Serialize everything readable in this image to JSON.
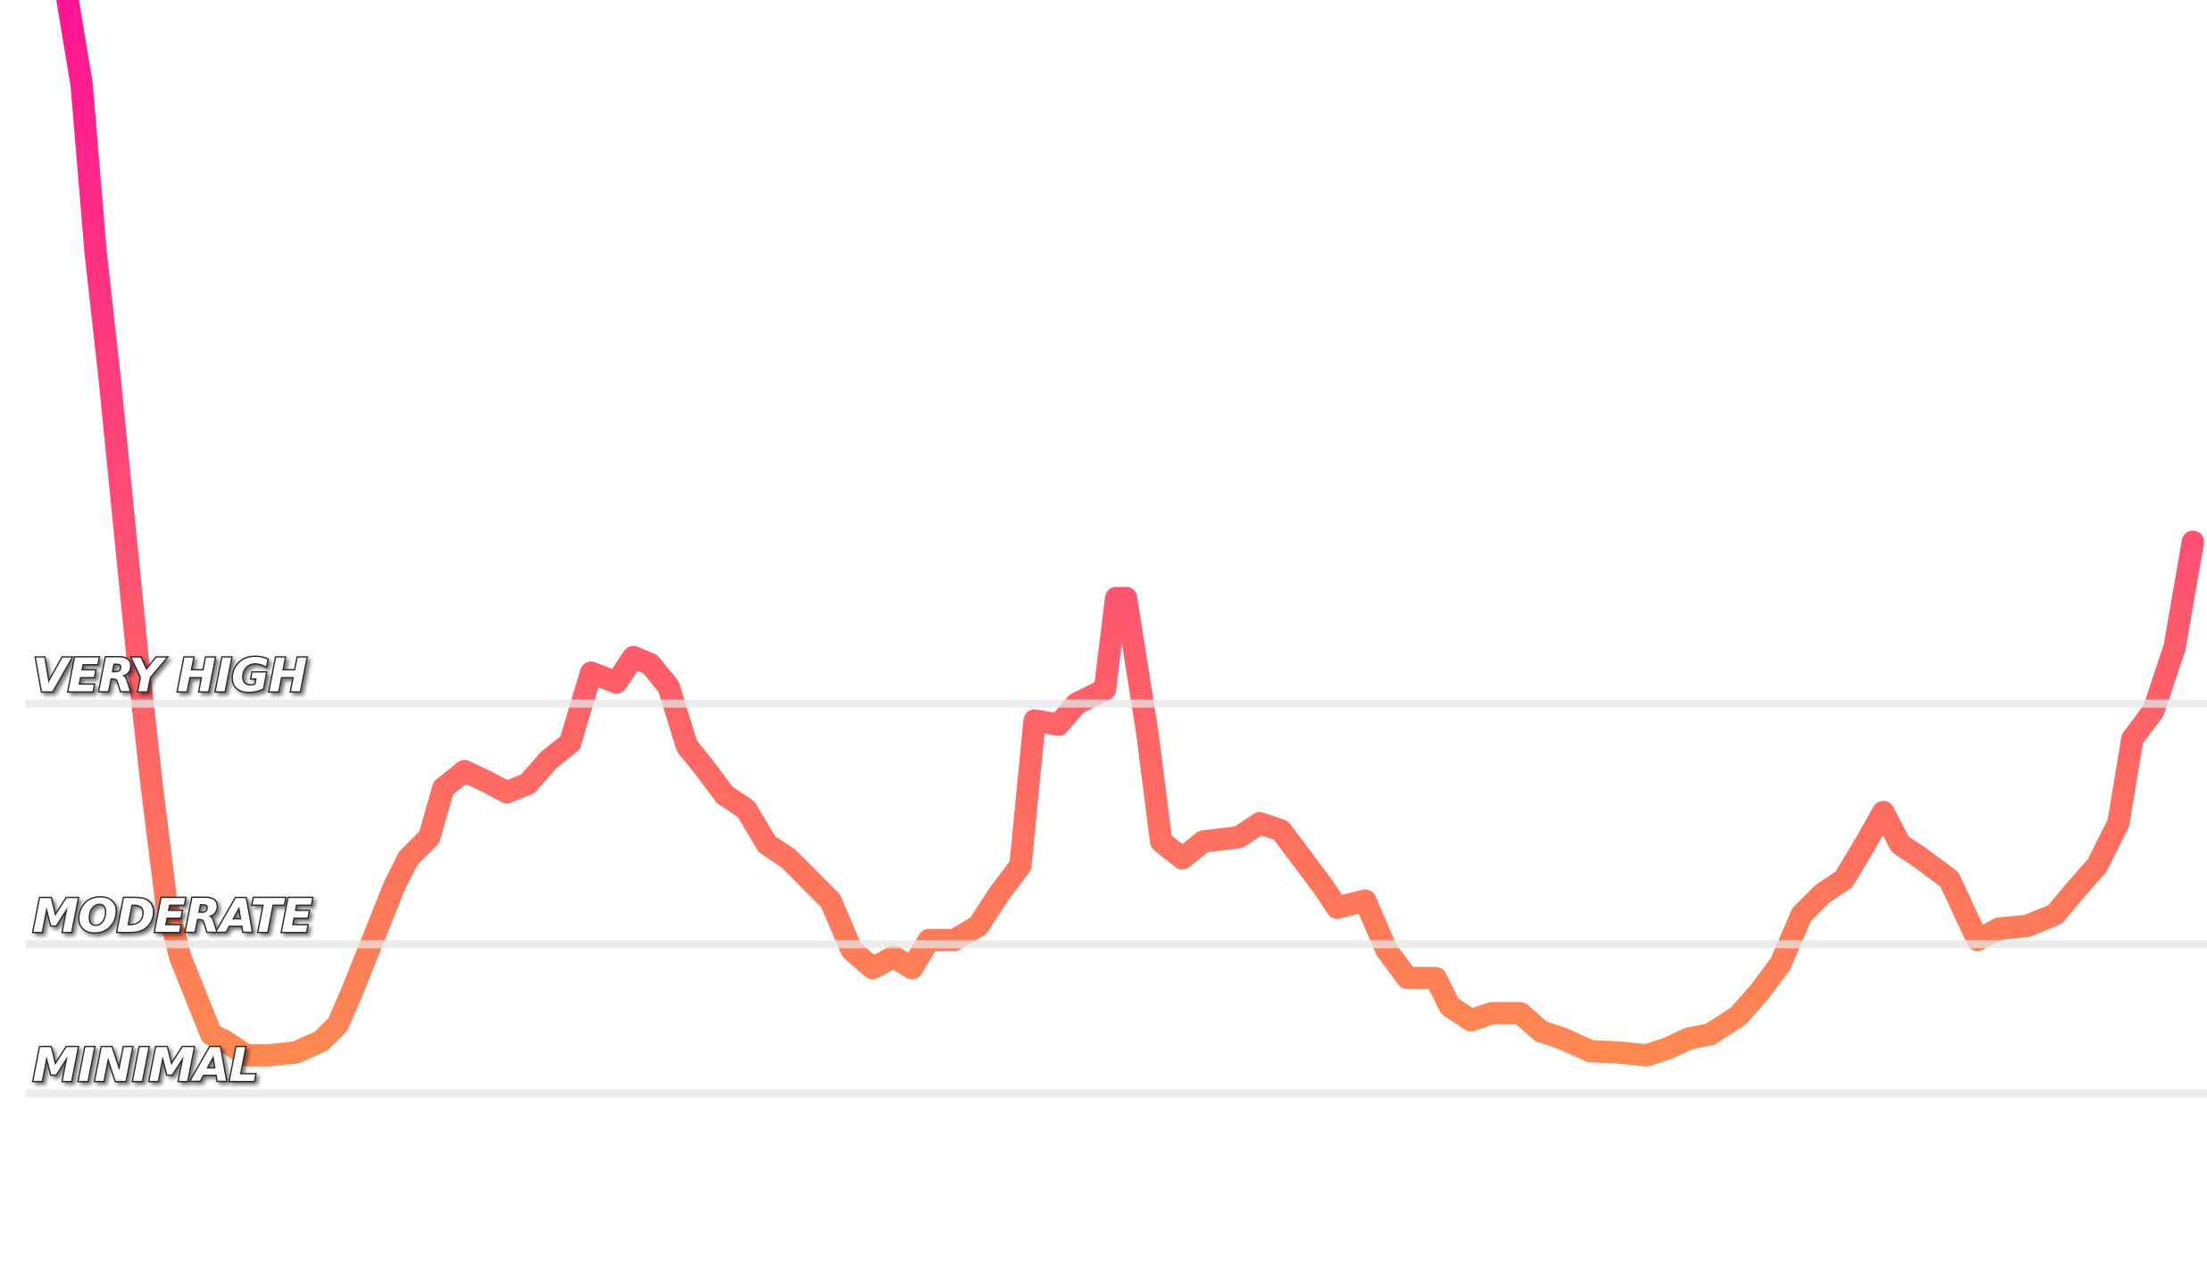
{
  "chart_data": {
    "type": "line",
    "xlim": [
      0,
      1550
    ],
    "ylim": [
      0,
      897
    ],
    "gradient": [
      "#ff1493",
      "#ff8a50"
    ],
    "reference_color": "#e6e6e6",
    "reference_lines": [
      {
        "label": "VERY HIGH",
        "value": 397
      },
      {
        "label": "MODERATE",
        "value": 226
      },
      {
        "label": "MINIMAL",
        "value": 120
      }
    ],
    "x": [
      30,
      40,
      50,
      60,
      70,
      80,
      90,
      100,
      110,
      122,
      132,
      142,
      157,
      172,
      192,
      210,
      222,
      232,
      242,
      252,
      262,
      272,
      287,
      297,
      312,
      327,
      342,
      357,
      372,
      387,
      402,
      420,
      432,
      444,
      457,
      470,
      482,
      497,
      512,
      527,
      542,
      557,
      572,
      587,
      602,
      617,
      630,
      642,
      660,
      677,
      692,
      707,
      717,
      734,
      747,
      767,
      775,
      782,
      797,
      807,
      822,
      837,
      862,
      877,
      892,
      907,
      922,
      932,
      952,
      967,
      982,
      1002,
      1012,
      1027,
      1042,
      1062,
      1077,
      1092,
      1112,
      1132,
      1152,
      1167,
      1182,
      1197,
      1217,
      1232,
      1247,
      1262,
      1277,
      1292,
      1307,
      1320,
      1332,
      1347,
      1367,
      1387,
      1402,
      1422,
      1442,
      1457,
      1472,
      1487,
      1497,
      1512,
      1527,
      1540
    ],
    "values": [
      897,
      837,
      717,
      627,
      527,
      427,
      337,
      257,
      217,
      187,
      162,
      157,
      147,
      147,
      149,
      157,
      169,
      192,
      217,
      242,
      267,
      287,
      302,
      337,
      349,
      342,
      334,
      340,
      357,
      369,
      419,
      412,
      430,
      425,
      409,
      367,
      352,
      332,
      322,
      297,
      287,
      272,
      257,
      222,
      209,
      217,
      209,
      229,
      229,
      239,
      262,
      282,
      385,
      382,
      397,
      407,
      472,
      472,
      377,
      299,
      287,
      299,
      302,
      312,
      307,
      287,
      267,
      252,
      257,
      222,
      202,
      202,
      182,
      172,
      177,
      177,
      164,
      159,
      150,
      149,
      147,
      152,
      159,
      162,
      175,
      192,
      212,
      247,
      262,
      272,
      297,
      320,
      297,
      287,
      272,
      229,
      237,
      239,
      247,
      265,
      282,
      312,
      372,
      392,
      437,
      512
    ]
  }
}
